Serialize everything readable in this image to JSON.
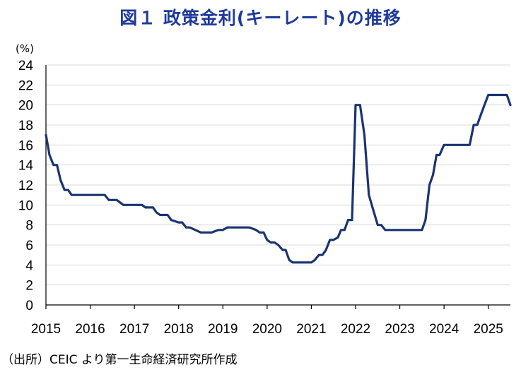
{
  "chart_data": {
    "type": "line",
    "title": "図１ 政策金利(キーレート)の推移",
    "ylabel": "(%)",
    "xlabel": "",
    "ylim": [
      0,
      24
    ],
    "yticks": [
      0,
      2,
      4,
      6,
      8,
      10,
      12,
      14,
      16,
      18,
      20,
      22,
      24
    ],
    "xlim": [
      2015.0,
      2025.5
    ],
    "xticks": [
      "2015",
      "2016",
      "2017",
      "2018",
      "2019",
      "2020",
      "2021",
      "2022",
      "2023",
      "2024",
      "2025"
    ],
    "grid": true,
    "color": "#1a3470",
    "series": [
      {
        "name": "",
        "x": [
          2015.0,
          2015.08,
          2015.17,
          2015.25,
          2015.33,
          2015.42,
          2015.5,
          2015.58,
          2015.67,
          2015.75,
          2015.83,
          2016.0,
          2016.33,
          2016.42,
          2016.5,
          2016.6,
          2016.75,
          2017.0,
          2017.17,
          2017.25,
          2017.42,
          2017.5,
          2017.58,
          2017.75,
          2017.83,
          2018.0,
          2018.08,
          2018.17,
          2018.25,
          2018.5,
          2018.67,
          2018.75,
          2018.9,
          2019.0,
          2019.1,
          2019.5,
          2019.6,
          2019.75,
          2019.83,
          2019.92,
          2020.0,
          2020.08,
          2020.17,
          2020.25,
          2020.35,
          2020.42,
          2020.5,
          2020.58,
          2021.0,
          2021.08,
          2021.17,
          2021.25,
          2021.33,
          2021.42,
          2021.5,
          2021.6,
          2021.67,
          2021.75,
          2021.83,
          2021.92,
          2022.0,
          2022.08,
          2022.1,
          2022.2,
          2022.3,
          2022.4,
          2022.5,
          2022.58,
          2022.67,
          2022.75,
          2023.0,
          2023.1,
          2023.5,
          2023.58,
          2023.67,
          2023.75,
          2023.83,
          2023.9,
          2024.0,
          2024.1,
          2024.5,
          2024.58,
          2024.67,
          2024.75,
          2024.83,
          2025.0,
          2025.25,
          2025.42,
          2025.5
        ],
        "y": [
          17,
          15,
          14,
          14,
          12.5,
          11.5,
          11.5,
          11,
          11,
          11,
          11,
          11,
          11,
          10.5,
          10.5,
          10.5,
          10,
          10,
          10,
          9.75,
          9.75,
          9.25,
          9,
          9,
          8.5,
          8.25,
          8.25,
          7.75,
          7.75,
          7.25,
          7.25,
          7.25,
          7.5,
          7.5,
          7.75,
          7.75,
          7.75,
          7.5,
          7.25,
          7.25,
          6.5,
          6.25,
          6.25,
          6,
          5.5,
          5.5,
          4.5,
          4.25,
          4.25,
          4.5,
          5,
          5,
          5.5,
          6.5,
          6.5,
          6.75,
          7.5,
          7.5,
          8.5,
          8.5,
          20,
          20,
          20,
          17,
          11,
          9.5,
          8,
          8,
          7.5,
          7.5,
          7.5,
          7.5,
          7.5,
          8.5,
          12,
          13,
          15,
          15,
          16,
          16,
          16,
          16,
          18,
          18,
          19,
          21,
          21,
          21,
          20
        ]
      }
    ]
  },
  "source": "（出所）CEIC より第一生命経済研究所作成"
}
